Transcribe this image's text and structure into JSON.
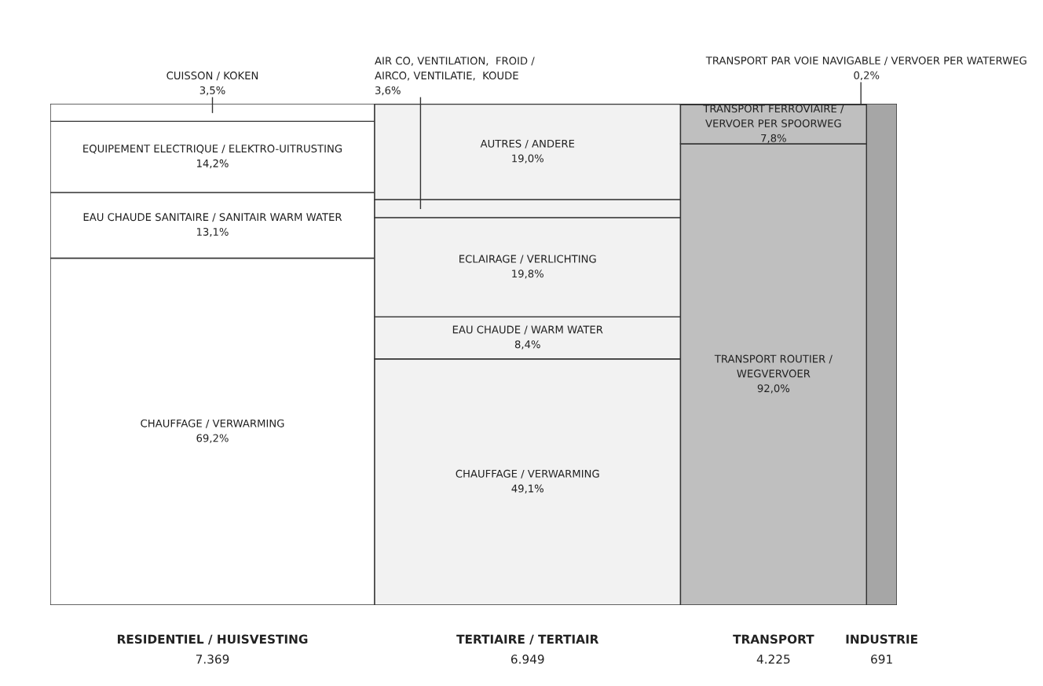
{
  "chart_data": {
    "type": "other",
    "categories": [
      "RESIDENTIEL / HUISVESTING",
      "TERTIAIRE / TERTIAIR",
      "TRANSPORT",
      "INDUSTRIE"
    ],
    "values": [
      7369,
      6949,
      4225,
      691
    ],
    "value_labels": [
      "7.369",
      "6.949",
      "4.225",
      "691"
    ],
    "colors": [
      "#ffffff",
      "#f2f2f2",
      "#bfbfbf",
      "#a6a6a6"
    ],
    "series": [
      {
        "name": "CHAUFFAGE / VERWARMING",
        "values": [
          69.2,
          null,
          null,
          null
        ],
        "value_labels": [
          "69,2%",
          null,
          null,
          null
        ]
      },
      {
        "name": "EAU CHAUDE SANITAIRE / SANITAIR WARM WATER",
        "values": [
          13.1,
          null,
          null,
          null
        ],
        "value_labels": [
          "13,1%",
          null,
          null,
          null
        ]
      },
      {
        "name": "EQUIPEMENT ELECTRIQUE / ELEKTRO-UITRUSTING",
        "values": [
          14.2,
          null,
          null,
          null
        ],
        "value_labels": [
          "14,2%",
          null,
          null,
          null
        ]
      },
      {
        "name": "CUISSON / KOKEN",
        "values": [
          3.5,
          null,
          null,
          null
        ],
        "value_labels": [
          "3,5%",
          null,
          null,
          null
        ]
      },
      {
        "name": "CHAUFFAGE / VERWARMING",
        "values": [
          null,
          49.1,
          null,
          null
        ],
        "value_labels": [
          null,
          "49,1%",
          null,
          null
        ]
      },
      {
        "name": "EAU CHAUDE / WARM WATER",
        "values": [
          null,
          8.4,
          null,
          null
        ],
        "value_labels": [
          null,
          "8,4%",
          null,
          null
        ]
      },
      {
        "name": "ECLAIRAGE / VERLICHTING",
        "values": [
          null,
          19.8,
          null,
          null
        ],
        "value_labels": [
          null,
          "19,8%",
          null,
          null
        ]
      },
      {
        "name": "AIR CO, VENTILATION,  FROID /\nAIRCO, VENTILATIE,  KOUDE",
        "values": [
          null,
          3.6,
          null,
          null
        ],
        "value_labels": [
          null,
          "3,6%",
          null,
          null
        ]
      },
      {
        "name": "AUTRES / ANDERE",
        "values": [
          null,
          19.0,
          null,
          null
        ],
        "value_labels": [
          null,
          "19,0%",
          null,
          null
        ]
      },
      {
        "name": "TRANSPORT ROUTIER /\nWEGVERVOER",
        "values": [
          null,
          null,
          92.0,
          null
        ],
        "value_labels": [
          null,
          null,
          "92,0%",
          null
        ]
      },
      {
        "name": "TRANSPORT FERROVIAIRE /\nVERVOER PER SPOORWEG",
        "values": [
          null,
          null,
          7.8,
          null
        ],
        "value_labels": [
          null,
          null,
          "7,8%",
          null
        ]
      },
      {
        "name": "TRANSPORT PAR VOIE NAVIGABLE / VERVOER PER WATERWEG",
        "values": [
          null,
          null,
          0.2,
          null
        ],
        "value_labels": [
          null,
          null,
          "0,2%",
          null
        ]
      }
    ]
  }
}
